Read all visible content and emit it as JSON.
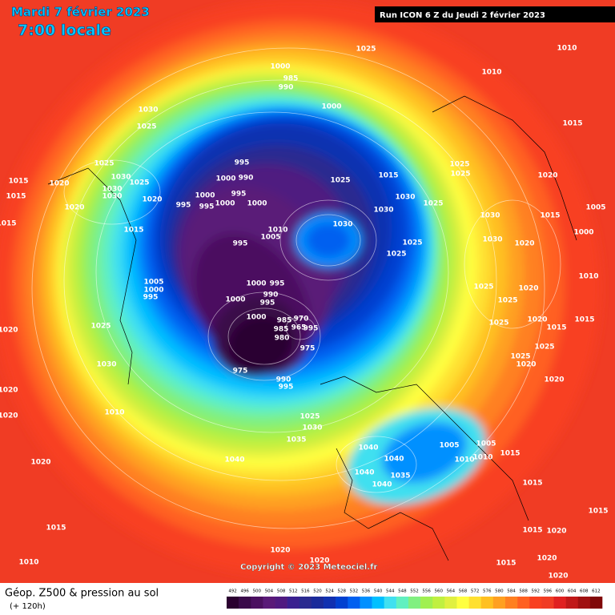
{
  "header": {
    "date": "Mardi 7 février 2023",
    "time": "7:00 locale",
    "run": "Run ICON 6 Z du Jeudi 2 février 2023"
  },
  "copyright": "Copyright © 2023 Meteociel.fr",
  "footer": {
    "title": "Géop. Z500 & pression au sol",
    "lead": "(+ 120h)"
  },
  "legend": {
    "ticks": [
      492,
      496,
      500,
      504,
      508,
      512,
      516,
      520,
      524,
      528,
      532,
      536,
      540,
      544,
      548,
      552,
      556,
      560,
      564,
      568,
      572,
      576,
      580,
      584,
      588,
      592,
      596,
      600,
      604,
      608,
      612
    ],
    "colors": [
      "#2b0030",
      "#3a0a4a",
      "#4b1060",
      "#5a1a78",
      "#501a80",
      "#3a2090",
      "#2a2a90",
      "#1a2a9a",
      "#1030b0",
      "#0040d0",
      "#0060f0",
      "#0090ff",
      "#00c0ff",
      "#40e0f0",
      "#60f0c0",
      "#80f080",
      "#a0f050",
      "#c0f040",
      "#e0f040",
      "#ffff40",
      "#ffe030",
      "#ffc020",
      "#ffa020",
      "#ff8020",
      "#ff6020",
      "#f84020",
      "#f03c24",
      "#e02020",
      "#c01818",
      "#a01010",
      "#800808"
    ]
  },
  "isobar_labels": [
    "1025",
    "1010",
    "1010",
    "1000",
    "985",
    "990",
    "1000",
    "1030",
    "1025",
    "1015",
    "1025",
    "1030",
    "1025",
    "1030",
    "1030",
    "1020",
    "1015",
    "1015",
    "1020",
    "1020",
    "1015",
    "1015",
    "995",
    "1000",
    "990",
    "995",
    "1000",
    "995",
    "995",
    "1000",
    "1000",
    "1025",
    "1015",
    "1030",
    "1030",
    "1025",
    "1025",
    "1025",
    "1020",
    "1030",
    "1010",
    "1005",
    "995",
    "1025",
    "1025",
    "1005",
    "1000",
    "995",
    "1000",
    "995",
    "990",
    "995",
    "1000",
    "1000",
    "985",
    "985",
    "980",
    "975",
    "970",
    "965",
    "995",
    "975",
    "990",
    "995",
    "1025",
    "1030",
    "1010",
    "1020",
    "1020",
    "1020",
    "1020",
    "1040",
    "1025",
    "1030",
    "1035",
    "1040",
    "1040",
    "1040",
    "1040",
    "1035",
    "1005",
    "1005",
    "1010",
    "1010",
    "1015",
    "1015",
    "1015",
    "1015",
    "1020",
    "1015",
    "1010",
    "1020",
    "1020",
    "1015",
    "1020",
    "1020",
    "1030",
    "1015",
    "1005",
    "1000",
    "1030",
    "1020",
    "1025",
    "1020",
    "1025",
    "1015",
    "1025",
    "1020",
    "1015",
    "1025",
    "1025",
    "1020",
    "1020",
    "1010"
  ]
}
